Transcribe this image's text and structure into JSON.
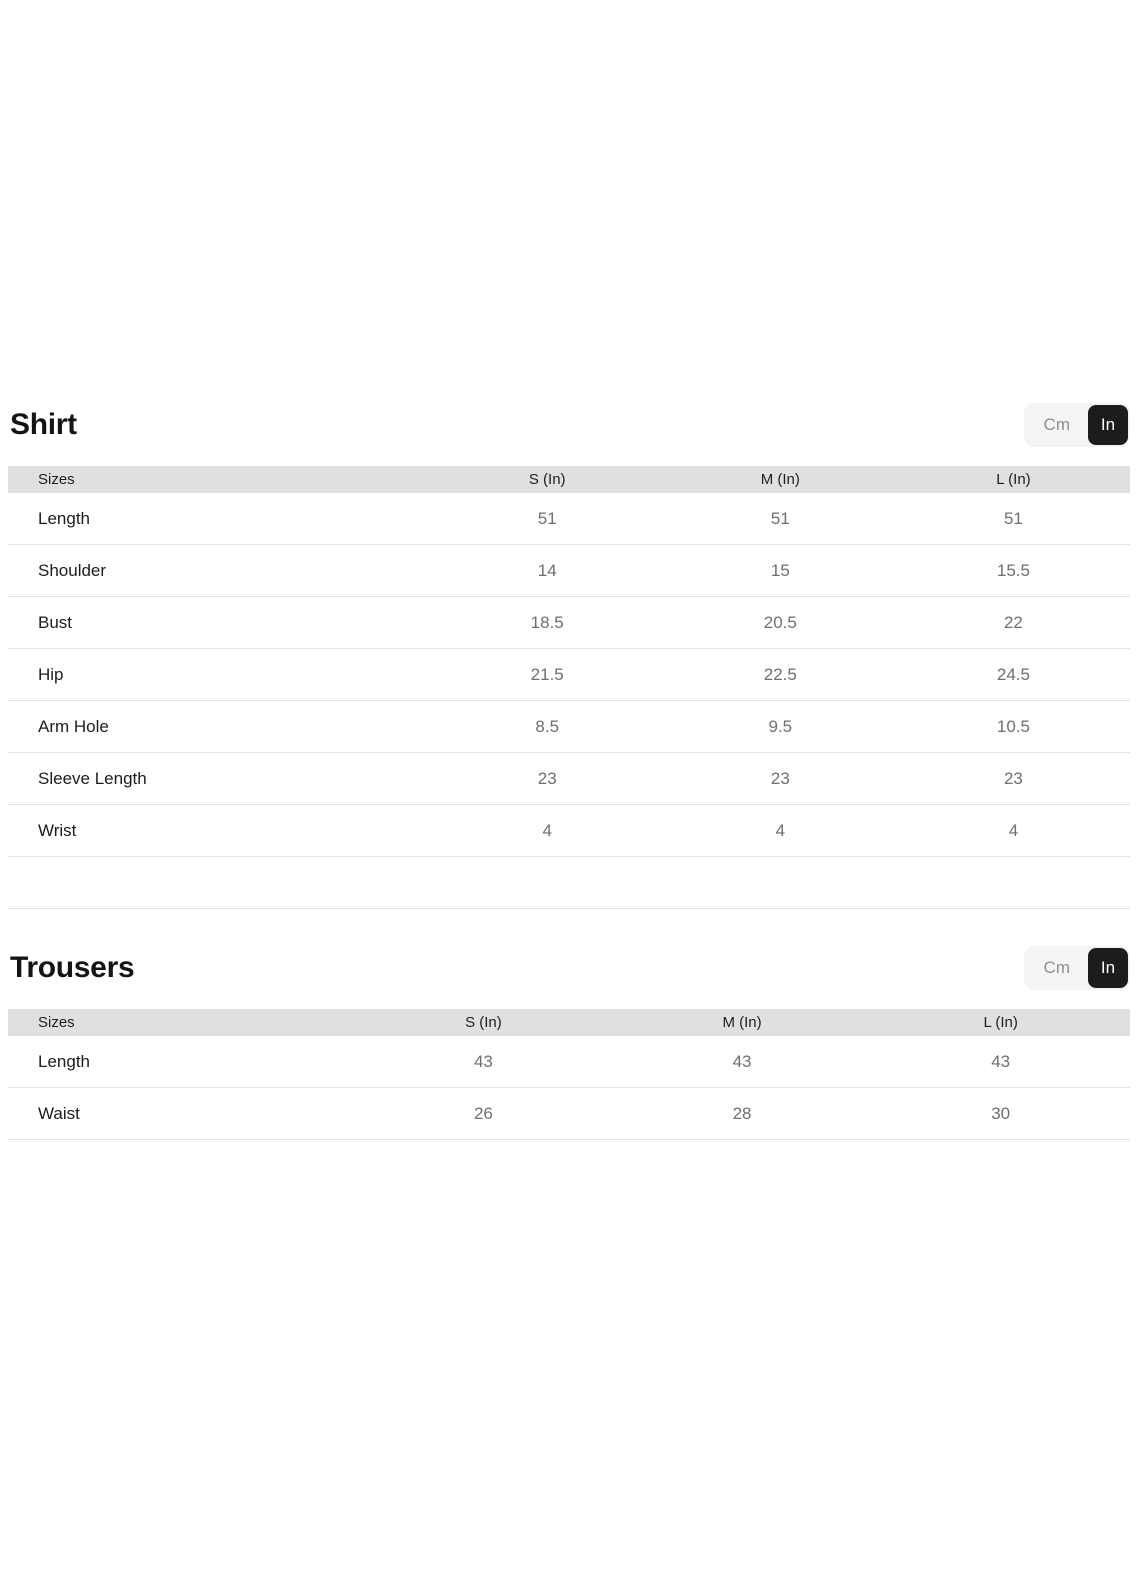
{
  "colors": {
    "page_background": "#ffffff",
    "header_band": "#e0e0e0",
    "row_divider": "#e3e3e4",
    "label_text": "#1c1c1e",
    "value_text": "#6e6e73",
    "toggle_container_bg": "#f4f4f5",
    "toggle_inactive_text": "#8e8e93",
    "toggle_active_bg": "#1c1c1e",
    "toggle_active_text": "#ffffff"
  },
  "sections": [
    {
      "id": "shirt",
      "title": "Shirt",
      "unit_toggle": {
        "options": [
          "Cm",
          "In"
        ],
        "selected": "In"
      },
      "table": {
        "headers": [
          "Sizes",
          "S (In)",
          "M (In)",
          "L (In)"
        ],
        "rows": [
          {
            "label": "Length",
            "values": [
              "51",
              "51",
              "51"
            ]
          },
          {
            "label": "Shoulder",
            "values": [
              "14",
              "15",
              "15.5"
            ]
          },
          {
            "label": "Bust",
            "values": [
              "18.5",
              "20.5",
              "22"
            ]
          },
          {
            "label": "Hip",
            "values": [
              "21.5",
              "22.5",
              "24.5"
            ]
          },
          {
            "label": "Arm Hole",
            "values": [
              "8.5",
              "9.5",
              "10.5"
            ]
          },
          {
            "label": "Sleeve Length",
            "values": [
              "23",
              "23",
              "23"
            ]
          },
          {
            "label": "Wrist",
            "values": [
              "4",
              "4",
              "4"
            ]
          },
          {
            "label": "",
            "values": [
              "",
              "",
              ""
            ]
          }
        ]
      }
    },
    {
      "id": "trousers",
      "title": "Trousers",
      "unit_toggle": {
        "options": [
          "Cm",
          "In"
        ],
        "selected": "In"
      },
      "table": {
        "headers": [
          "Sizes",
          "S (In)",
          "M (In)",
          "L (In)"
        ],
        "rows": [
          {
            "label": "Length",
            "values": [
              "43",
              "43",
              "43"
            ]
          },
          {
            "label": "Waist",
            "values": [
              "26",
              "28",
              "30"
            ]
          }
        ]
      }
    }
  ]
}
